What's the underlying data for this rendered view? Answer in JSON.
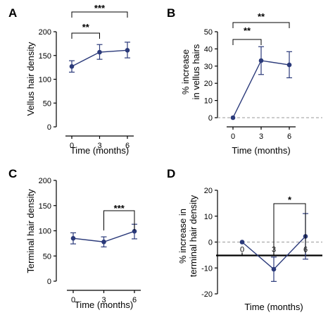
{
  "colors": {
    "series": "#2b3a7a",
    "axis": "#000000",
    "reference": "#9a9a9a"
  },
  "chart_data": [
    {
      "panel": "A",
      "type": "line",
      "x": [
        0,
        3,
        6
      ],
      "x_tick_labels": [
        "0",
        "3",
        "6"
      ],
      "xlabel": "Time (months)",
      "ylabel": "Vellus hair density",
      "ylim": [
        0,
        200
      ],
      "y_ticks": [
        0,
        50,
        100,
        150,
        200
      ],
      "series": [
        {
          "values": [
            127,
            157,
            161
          ],
          "error_lower": [
            115,
            142,
            145
          ],
          "error_upper": [
            139,
            173,
            178
          ]
        }
      ],
      "significance": [
        {
          "from": 0,
          "to": 3,
          "label": "**"
        },
        {
          "from": 0,
          "to": 6,
          "label": "***"
        }
      ]
    },
    {
      "panel": "B",
      "type": "line",
      "x": [
        0,
        3,
        6
      ],
      "x_tick_labels": [
        "0",
        "3",
        "6"
      ],
      "xlabel": "Time (months)",
      "ylabel": [
        "% increase",
        "in vellus hairs"
      ],
      "ylim": [
        0,
        50
      ],
      "y_ticks": [
        0,
        10,
        20,
        30,
        40,
        50
      ],
      "reference_line": 0,
      "series": [
        {
          "values": [
            0,
            33.2,
            30.7
          ],
          "error_lower": [
            0,
            25.1,
            23.2
          ],
          "error_upper": [
            0,
            41.3,
            38.4
          ]
        }
      ],
      "significance": [
        {
          "from": 0,
          "to": 3,
          "label": "**"
        },
        {
          "from": 0,
          "to": 6,
          "label": "**"
        }
      ]
    },
    {
      "panel": "C",
      "type": "line",
      "x": [
        0,
        3,
        6
      ],
      "x_tick_labels": [
        "0",
        "3",
        "6"
      ],
      "xlabel": "Time (months)",
      "ylabel": "Terminal hair density",
      "ylim": [
        0,
        200
      ],
      "y_ticks": [
        0,
        50,
        100,
        150,
        200
      ],
      "series": [
        {
          "values": [
            85,
            78,
            99
          ],
          "error_lower": [
            74,
            68,
            84
          ],
          "error_upper": [
            96,
            88,
            113
          ]
        }
      ],
      "significance": [
        {
          "from": 3,
          "to": 6,
          "label": "***"
        }
      ]
    },
    {
      "panel": "D",
      "type": "line",
      "x": [
        0,
        3,
        6
      ],
      "x_tick_labels": [
        "0",
        "3",
        "6"
      ],
      "xlabel": "Time (months)",
      "ylabel": [
        "% increase in",
        "terminal hair density"
      ],
      "ylim": [
        -20,
        20
      ],
      "y_ticks": [
        -20,
        -10,
        0,
        10,
        20
      ],
      "reference_line": 0,
      "series": [
        {
          "values": [
            0,
            -10.5,
            2.2
          ],
          "error_lower": [
            0,
            -15.2,
            -6.6
          ],
          "error_upper": [
            0,
            -5.8,
            11.0
          ]
        }
      ],
      "significance": [
        {
          "from": 3,
          "to": 6,
          "label": "*"
        }
      ]
    }
  ]
}
